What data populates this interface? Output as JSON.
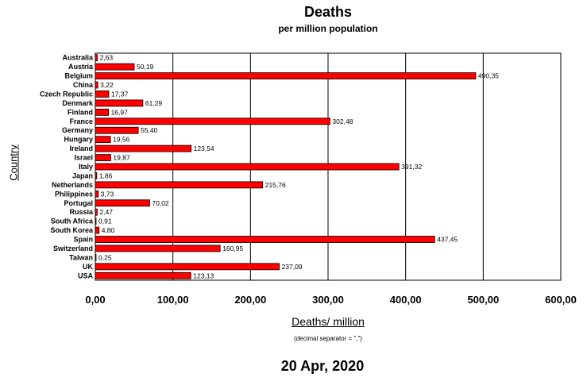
{
  "chart_data": {
    "type": "bar",
    "orientation": "horizontal",
    "title": "Deaths",
    "subtitle": "per million population",
    "xlabel": "Deaths/ million",
    "ylabel": "Country",
    "note": "(decimal separator = \",\")",
    "date": "20 Apr, 2020",
    "xlim": [
      0,
      600
    ],
    "xticks": [
      "0,00",
      "100,00",
      "200,00",
      "300,00",
      "400,00",
      "500,00",
      "600,00"
    ],
    "grid": true,
    "bar_color": "#ff0000",
    "categories": [
      "Australia",
      "Austria",
      "Belgium",
      "China",
      "Czech Republic",
      "Denmark",
      "Finland",
      "France",
      "Germany",
      "Hungary",
      "Ireland",
      "Israel",
      "Italy",
      "Japan",
      "Netherlands",
      "Philippines",
      "Portugal",
      "Russia",
      "South Africa",
      "South Korea",
      "Spain",
      "Switzerland",
      "Taiwan",
      "UK",
      "USA"
    ],
    "values": [
      2.63,
      50.19,
      490.35,
      3.22,
      17.37,
      61.29,
      16.97,
      302.48,
      55.4,
      19.56,
      123.54,
      19.87,
      391.32,
      1.86,
      215.76,
      3.73,
      70.02,
      2.47,
      0.91,
      4.8,
      437.45,
      160.95,
      0.25,
      237.09,
      123.13
    ],
    "value_labels": [
      "2,63",
      "50,19",
      "490,35",
      "3,22",
      "17,37",
      "61,29",
      "16,97",
      "302,48",
      "55,40",
      "19,56",
      "123,54",
      "19,87",
      "391,32",
      "1,86",
      "215,76",
      "3,73",
      "70,02",
      "2,47",
      "0,91",
      "4,80",
      "437,45",
      "160,95",
      "0,25",
      "237,09",
      "123,13"
    ]
  }
}
